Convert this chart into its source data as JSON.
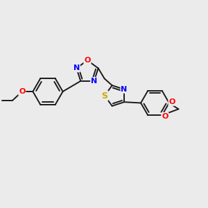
{
  "bg_color": "#ebebeb",
  "bond_color": "#1a1a1a",
  "atom_colors": {
    "N": "#0000ff",
    "O": "#ff0000",
    "S": "#ccaa00",
    "C": "#1a1a1a"
  },
  "font_size_atom": 8,
  "fig_size": [
    3.0,
    3.0
  ],
  "dpi": 100
}
